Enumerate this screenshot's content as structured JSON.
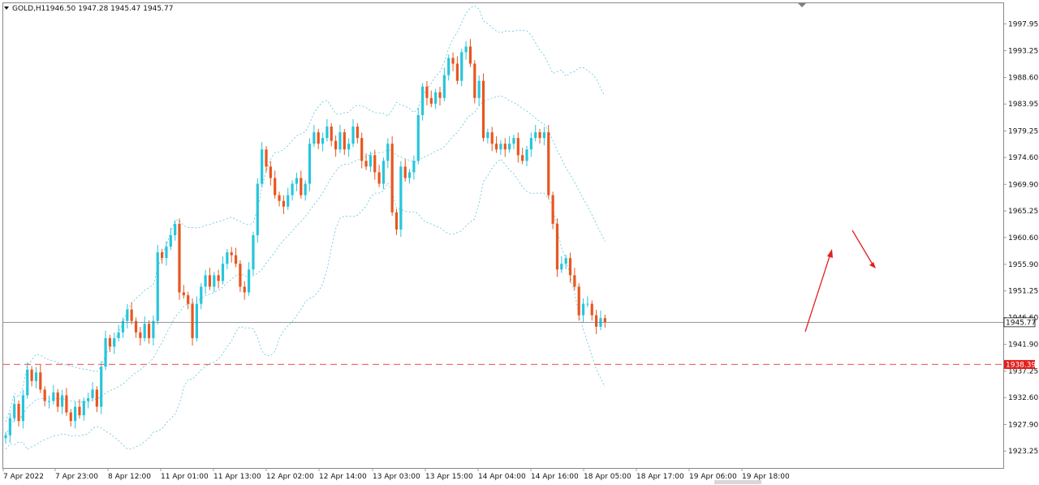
{
  "header": {
    "symbol": "GOLD,H1",
    "ohlc": "1946.50 1947.28 1945.47 1945.77"
  },
  "chart_data": {
    "type": "candlestick",
    "instrument": "GOLD",
    "timeframe": "H1",
    "ylim": [
      1921.0,
      2001.0
    ],
    "y_ticks": [
      "1997.95",
      "1993.25",
      "1988.60",
      "1983.95",
      "1979.25",
      "1974.60",
      "1969.90",
      "1965.25",
      "1960.60",
      "1955.90",
      "1951.25",
      "1946.60",
      "1941.90",
      "1937.25",
      "1932.60",
      "1927.90",
      "1923.25"
    ],
    "x_ticks": [
      "7 Apr 2022",
      "7 Apr 23:00",
      "8 Apr 12:00",
      "11 Apr 01:00",
      "11 Apr 13:00",
      "12 Apr 02:00",
      "12 Apr 14:00",
      "13 Apr 03:00",
      "13 Apr 15:00",
      "14 Apr 04:00",
      "14 Apr 16:00",
      "18 Apr 05:00",
      "18 Apr 17:00",
      "19 Apr 06:00",
      "19 Apr 18:00"
    ],
    "current_price": "1945.77",
    "current_price_value": 1945.77,
    "level_line": "1938.39",
    "level_line_value": 1938.39,
    "colors": {
      "bull": "#26c6da",
      "bear": "#e8561f",
      "band": "#5ec4d8",
      "level": "#f07070",
      "arrow": "#e0201f",
      "current": "#555555"
    },
    "closes": [
      1926.0,
      1929.0,
      1931.5,
      1928.5,
      1933.0,
      1937.5,
      1935.5,
      1937.0,
      1934.0,
      1932.0,
      1932.0,
      1933.5,
      1931.0,
      1933.0,
      1930.0,
      1928.5,
      1931.0,
      1929.5,
      1932.0,
      1932.5,
      1934.0,
      1931.0,
      1938.0,
      1943.0,
      1941.5,
      1943.0,
      1944.0,
      1946.0,
      1948.0,
      1946.0,
      1944.0,
      1943.0,
      1945.5,
      1943.0,
      1946.0,
      1958.0,
      1957.0,
      1959.0,
      1961.0,
      1963.0,
      1951.0,
      1950.5,
      1949.0,
      1943.0,
      1949.0,
      1952.0,
      1954.0,
      1952.0,
      1954.0,
      1953.0,
      1956.0,
      1958.0,
      1957.5,
      1956.0,
      1952.0,
      1951.0,
      1955.0,
      1961.0,
      1970.0,
      1976.0,
      1973.0,
      1971.0,
      1968.0,
      1967.0,
      1966.0,
      1968.0,
      1970.0,
      1971.0,
      1968.0,
      1970.0,
      1977.0,
      1979.0,
      1977.0,
      1978.0,
      1980.0,
      1977.5,
      1976.0,
      1979.0,
      1976.0,
      1977.0,
      1980.0,
      1978.0,
      1974.0,
      1973.0,
      1975.0,
      1972.0,
      1970.0,
      1974.0,
      1977.0,
      1965.0,
      1962.0,
      1973.0,
      1971.0,
      1972.0,
      1974.0,
      1982.0,
      1987.0,
      1985.0,
      1984.0,
      1986.0,
      1985.0,
      1989.0,
      1992.0,
      1991.0,
      1988.0,
      1993.0,
      1994.0,
      1991.0,
      1985.0,
      1988.0,
      1978.0,
      1979.0,
      1977.0,
      1976.0,
      1977.0,
      1976.0,
      1977.0,
      1978.0,
      1975.0,
      1974.0,
      1976.0,
      1978.0,
      1979.0,
      1978.0,
      1979.0,
      1968.0,
      1963.0,
      1955.0,
      1956.0,
      1957.0,
      1954.0,
      1952.0,
      1947.0,
      1949.0,
      1949.0,
      1947.0,
      1945.0,
      1946.5,
      1945.77
    ]
  }
}
